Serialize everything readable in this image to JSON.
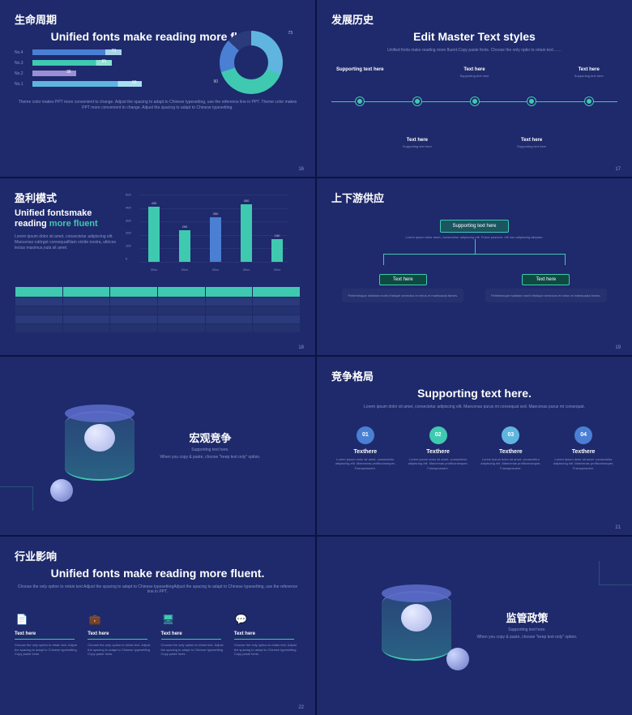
{
  "colors": {
    "bg": "#1e2a6b",
    "teal": "#3fc9b0",
    "blue1": "#4a7fd4",
    "blue2": "#5fb5e0",
    "purple": "#9a8fd4",
    "lightblue": "#a8d4e8"
  },
  "s1": {
    "cn": "生命周期",
    "title": "Unified fonts make reading more fluent.",
    "bars": [
      {
        "label": "No.4",
        "val": 73,
        "pct": 73,
        "c1": "#4a7fd4",
        "c2": "#a8d4e8",
        "split": 82
      },
      {
        "label": "No.3",
        "val": 65,
        "pct": 65,
        "c1": "#3fc9b0",
        "c2": "#8fe4d4",
        "split": 80
      },
      {
        "label": "No.2",
        "val": 36,
        "pct": 36,
        "c1": "#9a8fd4",
        "c2": "#c4bae8",
        "split": 100
      },
      {
        "label": "No.1",
        "val": 90,
        "pct": 90,
        "c1": "#5fb5e0",
        "c2": "#a8e0f0",
        "split": 78
      }
    ],
    "donut": {
      "seg": [
        {
          "v": 73,
          "c": "#5fb5e0"
        },
        {
          "v": 90,
          "c": "#3fc9b0"
        },
        {
          "v": 40,
          "c": "#4a7fd4"
        },
        {
          "v": 30,
          "c": "#2a3a7a"
        }
      ],
      "labels": [
        "73",
        "90"
      ]
    },
    "foot": "Theme color makes PPT more convenient to change. Adjust the spacing to adapt to Chinese typesetting, use the reference line in PPT. Theme color makes PPT more convenient to change. Adjust the spacing to adapt to Chinese typesetting.",
    "pn": "16"
  },
  "s2": {
    "cn": "发展历史",
    "title": "Edit Master Text styles",
    "sub": "Unified fonts make reading more fluent.Copy paste fonts. Choose the only optio to retain text……",
    "nodes": [
      {
        "x": 10,
        "pos": "top",
        "h": "Supporting text here"
      },
      {
        "x": 30,
        "pos": "bot",
        "h": "Text here",
        "s": "Supporting text here"
      },
      {
        "x": 50,
        "pos": "top",
        "h": "Text here",
        "s": "Supporting text here"
      },
      {
        "x": 70,
        "pos": "bot",
        "h": "Text here",
        "s": "Supporting text here"
      },
      {
        "x": 90,
        "pos": "top",
        "h": "Text here",
        "s": "Supporting text here"
      }
    ],
    "pn": "17"
  },
  "s3": {
    "cn": "盈利模式",
    "h1": "Unified fontsmake reading ",
    "h2": "more fluent",
    "desc": "Lorem ipsum dolor sit amet, consectetur adipiscing elit. Maecenas rutórget consequatNam vivíde nostra, ultrices lectus maximus,nula sit amet.",
    "ylim": 500,
    "yticks": [
      0,
      100,
      200,
      300,
      400,
      500
    ],
    "bars": [
      {
        "x": "20xx",
        "v": 430,
        "c": "#3fc9b0"
      },
      {
        "x": "20xx",
        "v": 250,
        "c": "#3fc9b0"
      },
      {
        "x": "20xx",
        "v": 350,
        "c": "#4a7fd4"
      },
      {
        "x": "20xx",
        "v": 450,
        "c": "#3fc9b0"
      },
      {
        "x": "20xx",
        "v": 180,
        "c": "#3fc9b0"
      }
    ],
    "pn": "18"
  },
  "s4": {
    "cn": "上下游供应",
    "top": "Supporting text here",
    "topd": "Lorem ipsum dolor amet, consectetur adipiscing elit. Fusce posuere, elit non adipiscing aliquam.",
    "boxes": [
      {
        "t": "Text here",
        "d": "Pellentesque habitant morbi tristique senectus et netus et malesuada fames."
      },
      {
        "t": "Text here",
        "d": "Pellentesque habitant morbi tristique senectus et netus et malesuada fames."
      }
    ],
    "pn": "19"
  },
  "s5": {
    "h": "宏观竞争",
    "s1": "Supporting text here.",
    "s2": "When you copy & paste, choose \"keep text only\" option."
  },
  "s6": {
    "cn": "竞争格局",
    "title": "Supporting text here.",
    "sub": "Lorem ipsum dolor sit amet, consectetur adipiscing elit. Maecenas purus mi consequat sed. Maecenas purus mi consequat.",
    "cols": [
      {
        "n": "01",
        "c": "#4a7fd4",
        "t": "Texthere",
        "d": "Lorem ipsum dolor sit amet, consectetur adipiscing elit. Maecenas profitconsequer, Fususposuere."
      },
      {
        "n": "02",
        "c": "#3fc9b0",
        "t": "Texthere",
        "d": "Lorem ipsum dolor sit amet, consectetur adipiscing elit. Maecenas profitconsequer, Fususposuere."
      },
      {
        "n": "03",
        "c": "#5fb5e0",
        "t": "Texthere",
        "d": "Lorem ipsum dolor sit amet, consectetur adipiscing elit. Maecenas profitconsequer, Fususposuere."
      },
      {
        "n": "04",
        "c": "#4a7fd4",
        "t": "Texthere",
        "d": "Lorem ipsum dolor sit amet, consectetur adipiscing elit. Maecenas profitconsequer, Fususposuere."
      }
    ],
    "pn": "21"
  },
  "s7": {
    "cn": "行业影响",
    "title": "Unified fonts make reading more fluent.",
    "sub": "Choose the only option to retain text Adjust the spacing to adapt to Chinese typesettingAdjust the spacing to adapt to Chinese typesetting, use the reference line in PPT.",
    "items": [
      {
        "ico": "📄",
        "c": "#3fc9b0",
        "t": "Text here",
        "d": "Choose the only option to retain text. Adjust the spacing to adapt to Chinese typesetting Copy paste fonts."
      },
      {
        "ico": "💼",
        "c": "#4a7fd4",
        "t": "Text here",
        "d": "Choose the only option to retain text. Adjust the spacing to adapt to Chinese typesetting Copy paste fonts."
      },
      {
        "ico": "🖥",
        "c": "#3fc9b0",
        "t": "Text here",
        "d": "Choose the only option to retain text. Adjust the spacing to adapt to Chinese typesetting Copy paste fonts."
      },
      {
        "ico": "💬",
        "c": "#4a7fd4",
        "t": "Text here",
        "d": "Choose the only option to retain text. Adjust the spacing to adapt to Chinese typesetting Copy paste fonts."
      }
    ],
    "pn": "22"
  },
  "s8": {
    "h": "监管政策",
    "s1": "Supporting text here.",
    "s2": "When you copy & paste, choose \"keep text only\" option."
  }
}
